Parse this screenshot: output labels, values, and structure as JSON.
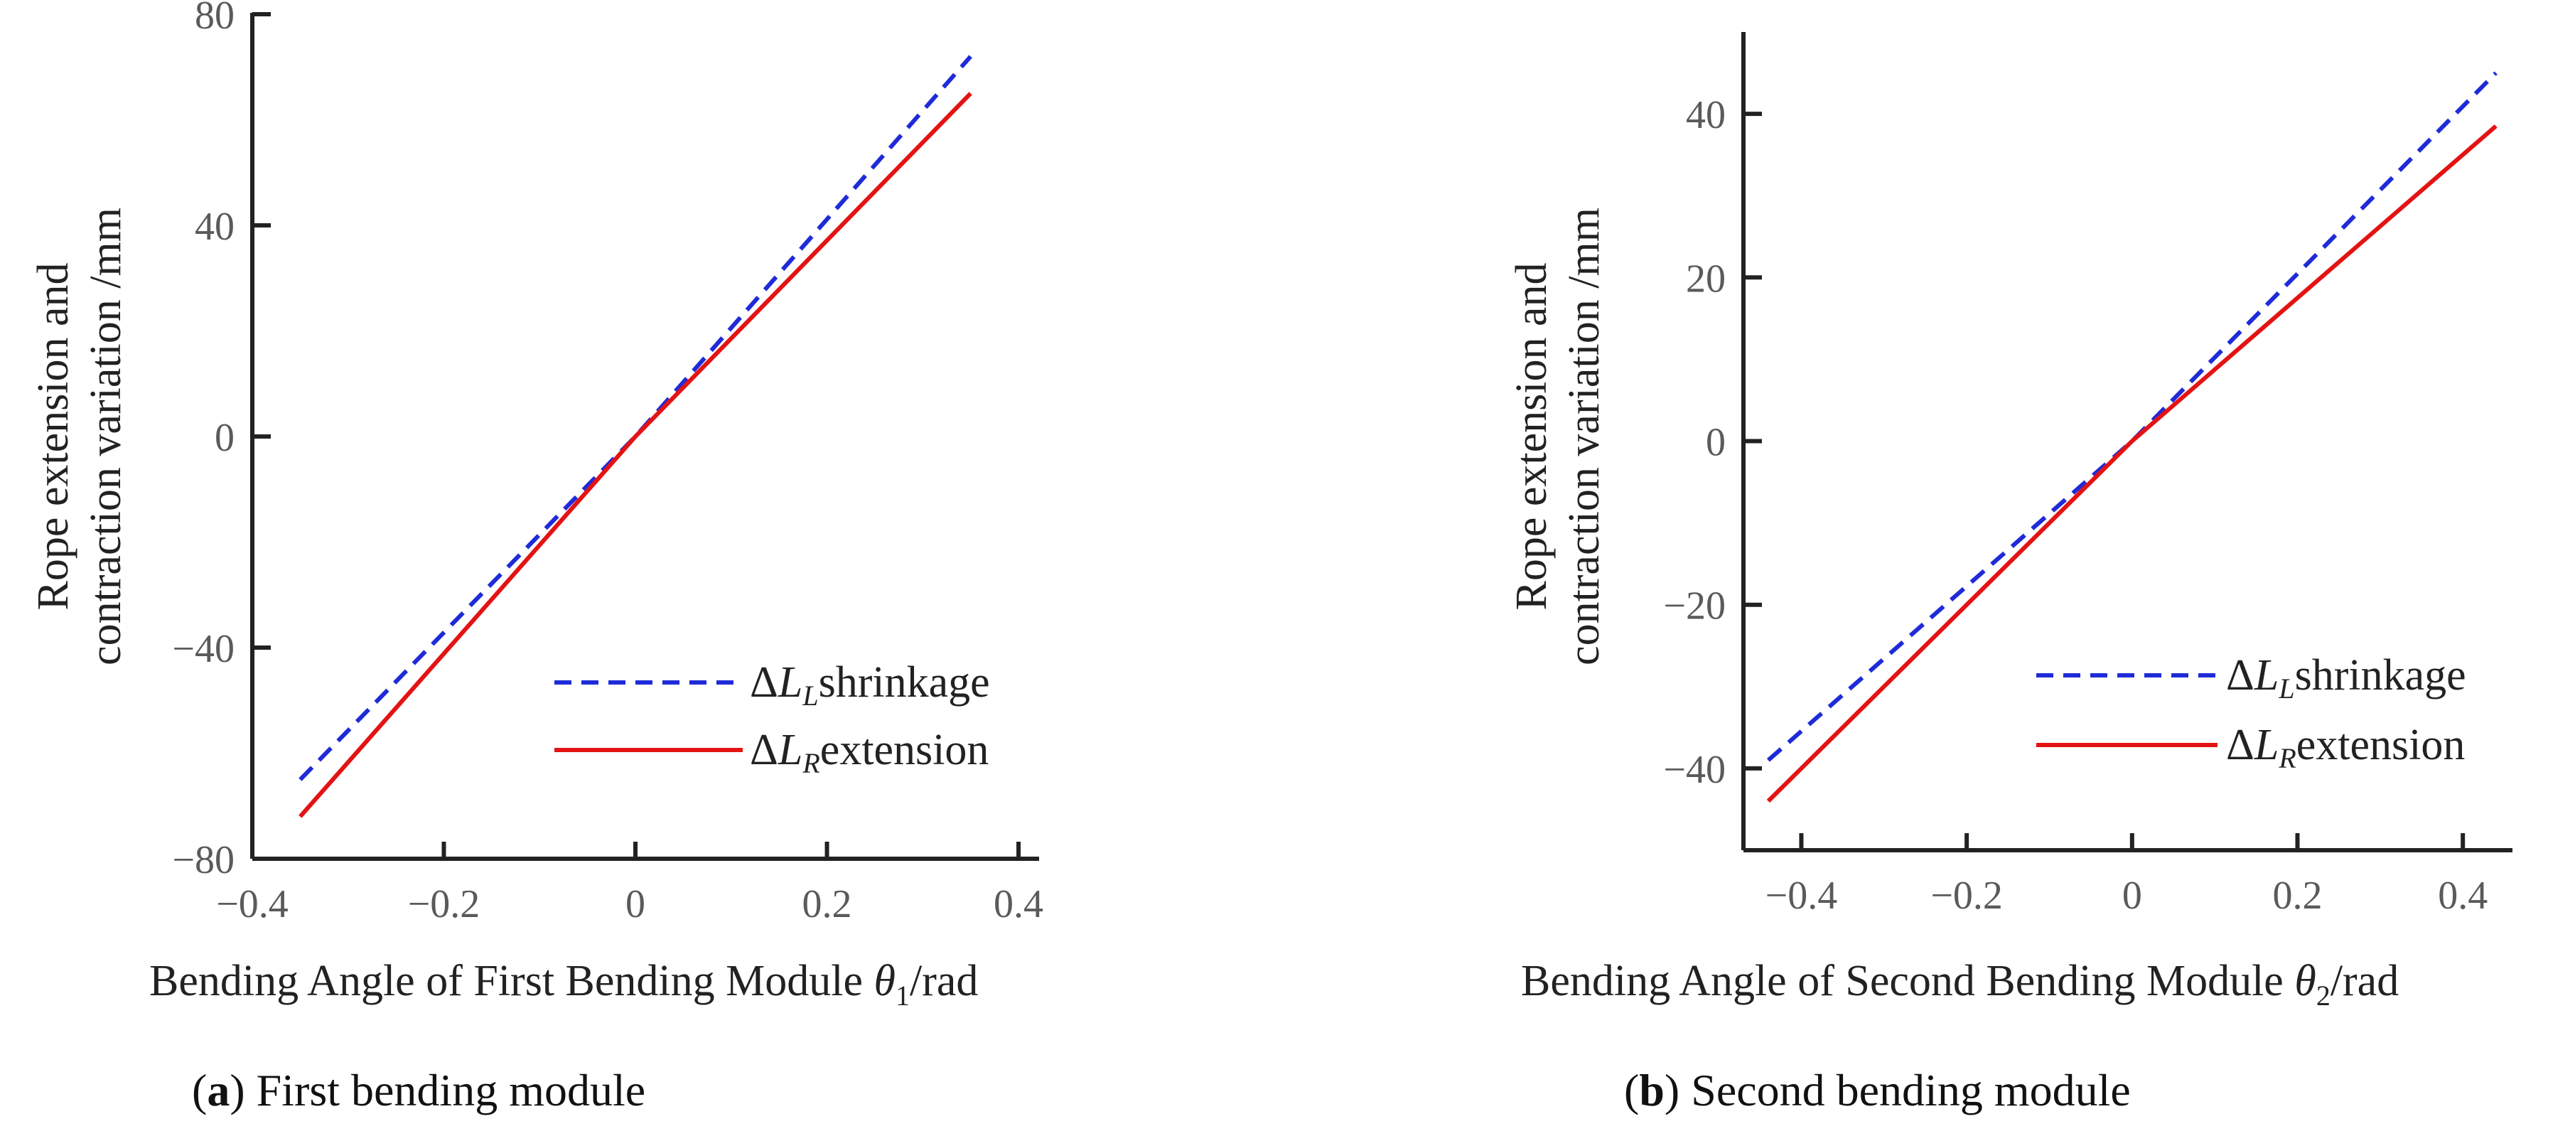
{
  "colors": {
    "shrink": "#1f2bd8",
    "extend": "#e41313"
  },
  "chart_data": [
    {
      "type": "line",
      "panel": "a",
      "caption_letter": "a",
      "caption_text": " First bending module",
      "ylabel_line1": "Rope extension and",
      "ylabel_line2": "contraction variation /mm",
      "xlabel_pre": "Bending Angle of First Bending Module ",
      "xlabel_theta": "θ",
      "xlabel_sub": "1",
      "xlabel_post": "/rad",
      "xlim": [
        -0.4,
        0.42
      ],
      "ylim": [
        -80,
        80
      ],
      "xticks": [
        -0.4,
        -0.2,
        0,
        0.2,
        0.4
      ],
      "xtick_labels": [
        "−0.4",
        "−0.2",
        "0",
        "0.2",
        "0.4"
      ],
      "yticks": [
        -80,
        -40,
        0,
        40,
        80
      ],
      "ytick_labels": [
        "−80",
        "−40",
        "0",
        "40",
        "80"
      ],
      "legend_position": "lower-right",
      "series": [
        {
          "name": "shrinkage",
          "legend_delta": "Δ",
          "legend_L": "L",
          "legend_sub": "L",
          "legend_text": "shrinkage",
          "style": "dashed",
          "x": [
            -0.35,
            0,
            0.35
          ],
          "y": [
            -65,
            0,
            72
          ]
        },
        {
          "name": "extension",
          "legend_delta": "Δ",
          "legend_L": "L",
          "legend_sub": "R",
          "legend_text": "extension",
          "style": "solid",
          "x": [
            -0.35,
            0,
            0.35
          ],
          "y": [
            -72,
            0,
            65
          ]
        }
      ]
    },
    {
      "type": "line",
      "panel": "b",
      "caption_letter": "b",
      "caption_text": " Second bending module",
      "ylabel_line1": "Rope extension and",
      "ylabel_line2": "contraction variation /mm",
      "xlabel_pre": "Bending Angle of Second Bending Module ",
      "xlabel_theta": "θ",
      "xlabel_sub": "2",
      "xlabel_post": "/rad",
      "xlim": [
        -0.47,
        0.46
      ],
      "ylim": [
        -50,
        50
      ],
      "xticks": [
        -0.4,
        -0.2,
        0,
        0.2,
        0.4
      ],
      "xtick_labels": [
        "−0.4",
        "−0.2",
        "0",
        "0.2",
        "0.4"
      ],
      "yticks": [
        -40,
        -20,
        0,
        20,
        40
      ],
      "ytick_labels": [
        "−40",
        "−20",
        "0",
        "20",
        "40"
      ],
      "legend_position": "lower-right",
      "series": [
        {
          "name": "shrinkage",
          "legend_delta": "Δ",
          "legend_L": "L",
          "legend_sub": "L",
          "legend_text": "shrinkage",
          "style": "dashed",
          "x": [
            -0.44,
            0,
            0.44
          ],
          "y": [
            -39,
            0,
            45
          ]
        },
        {
          "name": "extension",
          "legend_delta": "Δ",
          "legend_L": "L",
          "legend_sub": "R",
          "legend_text": "extension",
          "style": "solid",
          "x": [
            -0.44,
            0,
            0.44
          ],
          "y": [
            -44,
            0,
            38.5
          ]
        }
      ]
    }
  ]
}
